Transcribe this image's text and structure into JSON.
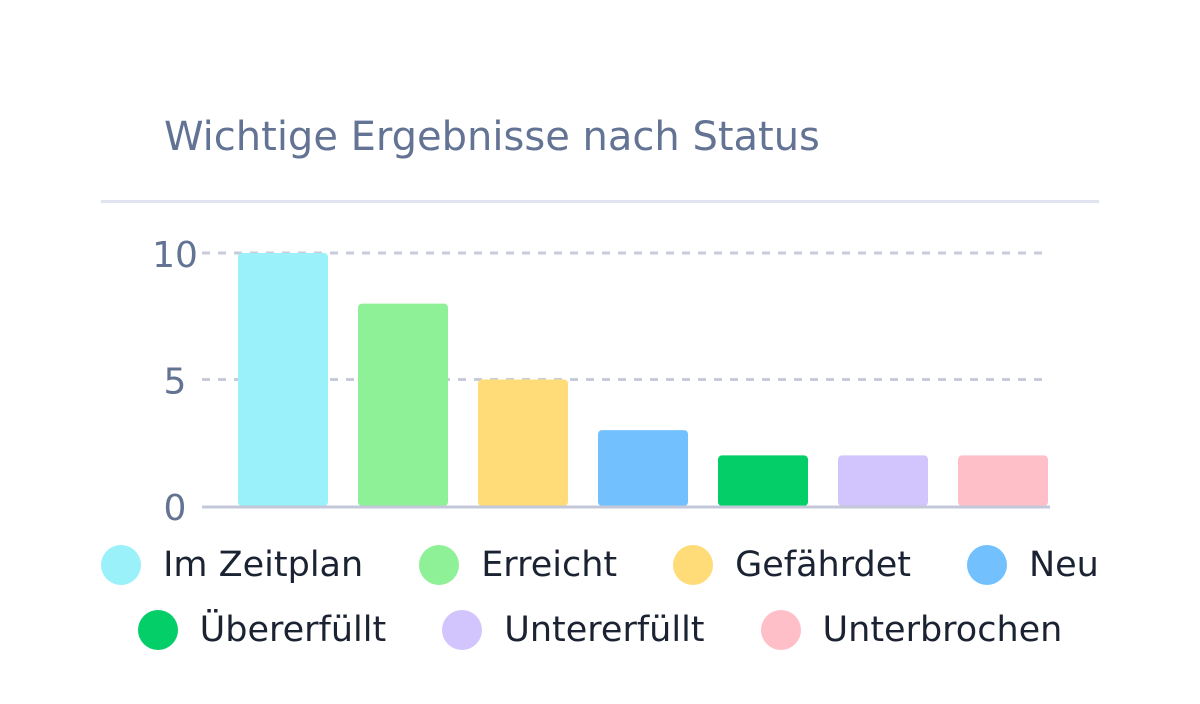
{
  "chart_data": {
    "type": "bar",
    "title": "Wichtige Ergebnisse nach Status",
    "categories": [
      "Im Zeitplan",
      "Erreicht",
      "Gefährdet",
      "Neu",
      "Übererfüllt",
      "Untererfüllt",
      "Unterbrochen"
    ],
    "values": [
      10,
      8,
      5,
      3,
      2,
      2,
      2
    ],
    "colors": [
      "#9af1fa",
      "#8ef197",
      "#ffdc78",
      "#72c1fe",
      "#03ce67",
      "#d2c5fd",
      "#ffbfc9"
    ],
    "yticks": [
      0,
      5,
      10
    ],
    "ylim": [
      0,
      10
    ],
    "grid": true,
    "legend": "bottom"
  }
}
